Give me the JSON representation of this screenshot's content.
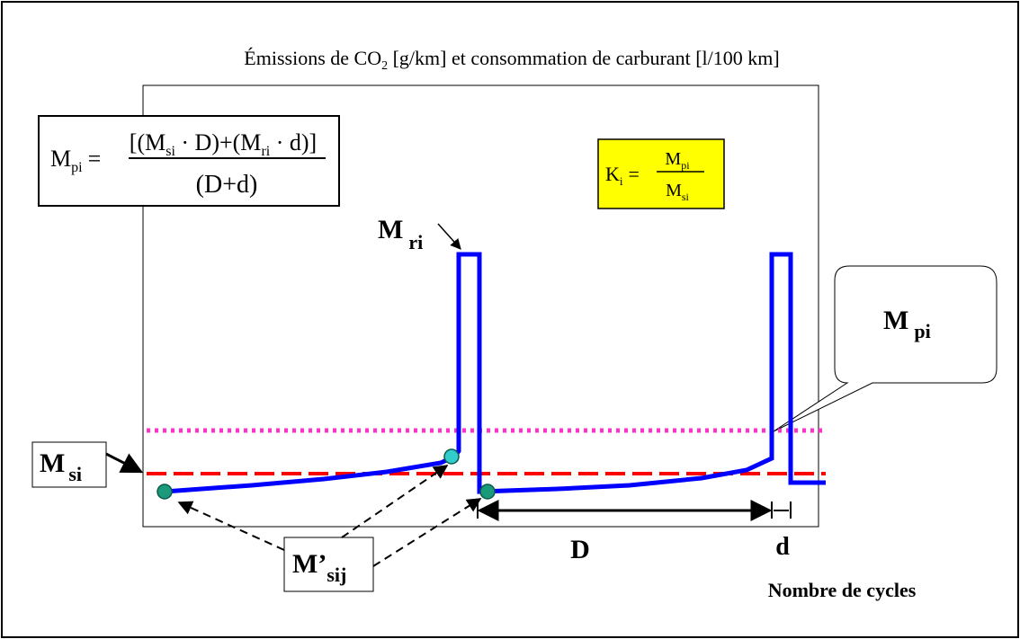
{
  "title": {
    "pre": "Émissions de CO",
    "sub": "2",
    "post": " [g/km] et consommation de carburant [l/100 km]"
  },
  "formula_mpi": {
    "lhs_main": "M",
    "lhs_sub": "pi",
    "equals": "=",
    "numerator": "[(M",
    "num_sub1": "si",
    "num_mid": " · D)+(M",
    "num_sub2": "ri",
    "num_end": " · d)]",
    "denominator": "(D+d)"
  },
  "formula_ki": {
    "lhs_main": "K",
    "lhs_sub": "i",
    "equals": "=",
    "num_main": "M",
    "num_sub": "pi",
    "den_main": "M",
    "den_sub": "si",
    "fill": "#ffff00"
  },
  "labels": {
    "mri_main": "M",
    "mri_sub": "ri",
    "mpi_main": "M",
    "mpi_sub": "pi",
    "msi_main": "M",
    "msi_sub": "si",
    "msij_main": "M’",
    "msij_sub": "sij",
    "d_big": "D",
    "d_small": "d",
    "x_axis": "Nombre de cycles"
  },
  "colors": {
    "curve": "#0000ff",
    "msi_line": "#ff0000",
    "mpi_line": "#ff33cc",
    "marker_light": "#33cccc",
    "marker_dark": "#1a9a7a"
  }
}
